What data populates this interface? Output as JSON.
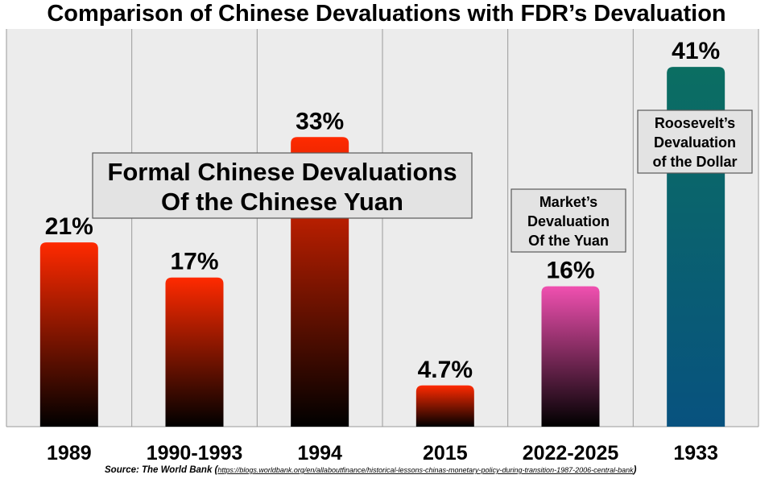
{
  "chart_data": {
    "type": "bar",
    "title": "Comparison of Chinese Devaluations with FDR’s Devaluation",
    "categories": [
      "1989",
      "1990-1993",
      "1994",
      "2015",
      "2022-2025",
      "1933"
    ],
    "values": [
      21,
      17,
      33,
      4.7,
      16,
      41
    ],
    "value_labels": [
      "21%",
      "17%",
      "33%",
      "4.7%",
      "16%",
      "41%"
    ],
    "ylim": [
      0,
      45
    ],
    "xlabel": "",
    "ylabel": "",
    "grid": "vertical",
    "bar_gradients": [
      [
        "#ff2a00",
        "#000000"
      ],
      [
        "#ff2a00",
        "#000000"
      ],
      [
        "#ff2a00",
        "#000000"
      ],
      [
        "#ff2a00",
        "#000000"
      ],
      [
        "#f050b0",
        "#000000"
      ],
      [
        "#0b6e62",
        "#08527f"
      ]
    ],
    "annotations": {
      "formal": [
        "Formal Chinese Devaluations",
        "Of the Chinese Yuan"
      ],
      "market": [
        "Market’s",
        "Devaluation",
        "Of the Yuan"
      ],
      "roosevelt": [
        "Roosevelt’s",
        "Devaluation",
        "of the Dollar"
      ]
    },
    "source": {
      "prefix": "Source: The World Bank (",
      "url": "https://blogs.worldbank.org/en/allaboutfinance/historical-lessons-chinas-monetary-policy-during-transition-1987-2006-central-bank",
      "suffix": ")"
    }
  }
}
